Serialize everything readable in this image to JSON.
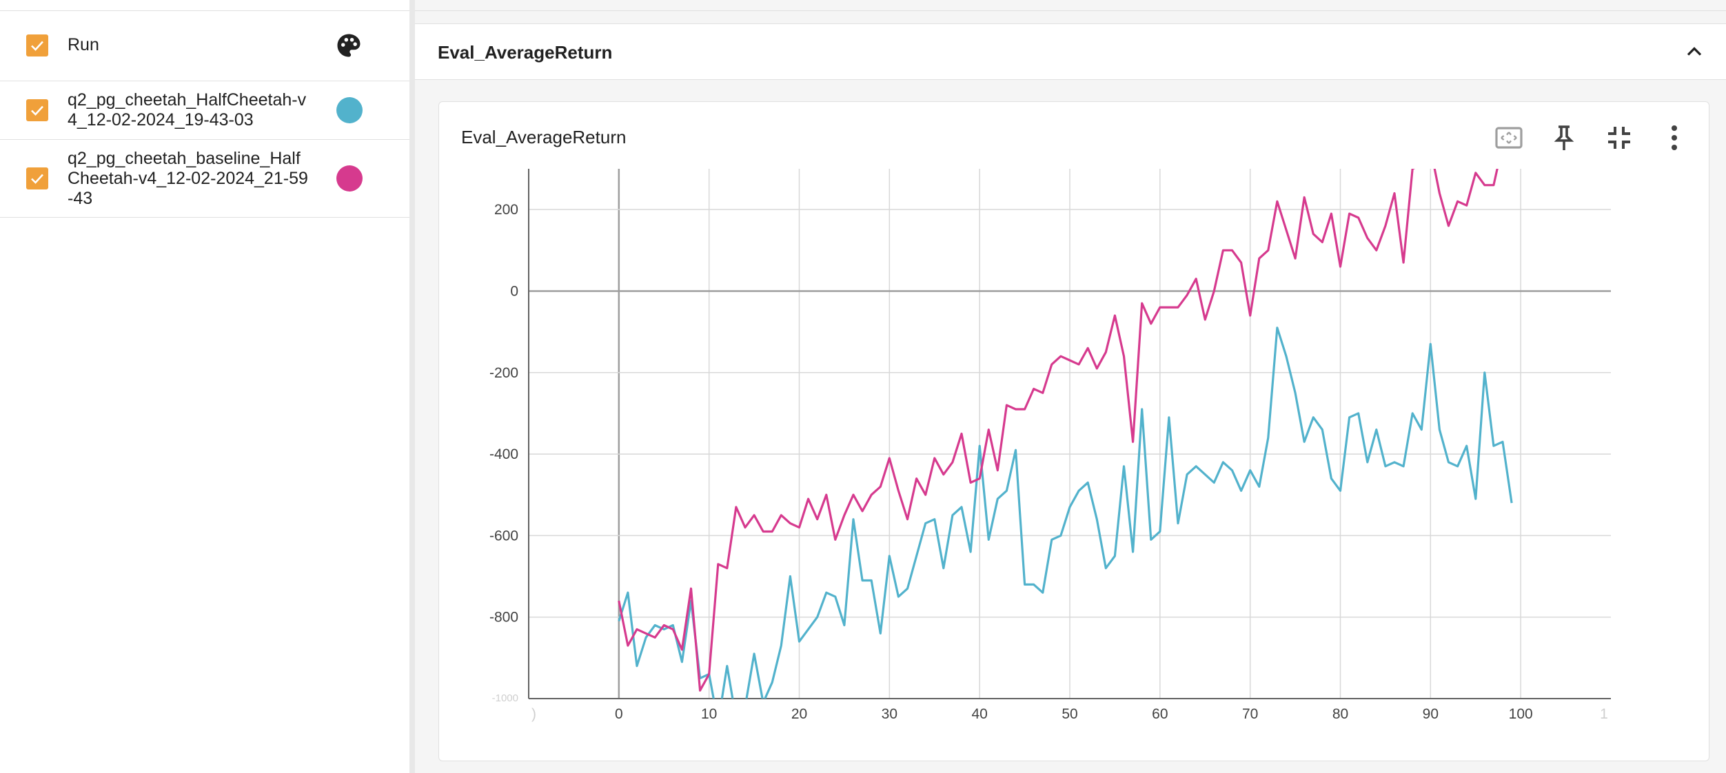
{
  "sidebar": {
    "header": {
      "label": "Run",
      "checked": true
    },
    "runs": [
      {
        "name": "q2_pg_cheetah_HalfCheetah-v4_12-02-2024_19-43-03",
        "color": "#52b2cc",
        "checked": true
      },
      {
        "name": "q2_pg_cheetah_baseline_HalfCheetah-v4_12-02-2024_21-59-43",
        "color": "#d63a8e",
        "checked": true
      }
    ]
  },
  "group": {
    "title": "Eval_AverageReturn"
  },
  "card": {
    "title": "Eval_AverageReturn"
  },
  "colors": {
    "checkbox": "#f0a03a",
    "grid": "#d8d8d8",
    "axis": "#9e9e9e",
    "series1": "#52b2cc",
    "series2": "#d63a8e"
  },
  "chart_data": {
    "type": "line",
    "title": "Eval_AverageReturn",
    "xlim": [
      -10,
      110
    ],
    "ylim": [
      -1000,
      300
    ],
    "x_ticks": [
      0,
      10,
      20,
      30,
      40,
      50,
      60,
      70,
      80,
      90,
      100
    ],
    "y_ticks": [
      200,
      0,
      -200,
      -400,
      -600,
      -800
    ],
    "edge_labels": {
      "x_left": ")",
      "x_right": "1",
      "y_bottom": "-1000"
    },
    "series": [
      {
        "name": "q2_pg_cheetah_HalfCheetah-v4_12-02-2024_19-43-03",
        "color": "#52b2cc",
        "x": [
          0,
          1,
          2,
          3,
          4,
          5,
          6,
          7,
          8,
          9,
          10,
          11,
          12,
          13,
          14,
          15,
          16,
          17,
          18,
          19,
          20,
          21,
          22,
          23,
          24,
          25,
          26,
          27,
          28,
          29,
          30,
          31,
          32,
          33,
          34,
          35,
          36,
          37,
          38,
          39,
          40,
          41,
          42,
          43,
          44,
          45,
          46,
          47,
          48,
          49,
          50,
          51,
          52,
          53,
          54,
          55,
          56,
          57,
          58,
          59,
          60,
          61,
          62,
          63,
          64,
          65,
          66,
          67,
          68,
          69,
          70,
          71,
          72,
          73,
          74,
          75,
          76,
          77,
          78,
          79,
          80,
          81,
          82,
          83,
          84,
          85,
          86,
          87,
          88,
          89,
          90,
          91,
          92,
          93,
          94,
          95,
          96,
          97,
          98,
          99
        ],
        "values": [
          -810,
          -740,
          -920,
          -850,
          -820,
          -830,
          -820,
          -910,
          -760,
          -950,
          -940,
          -1060,
          -920,
          -1050,
          -1020,
          -890,
          -1010,
          -960,
          -870,
          -700,
          -860,
          -830,
          -800,
          -740,
          -750,
          -820,
          -560,
          -710,
          -710,
          -840,
          -650,
          -750,
          -730,
          -650,
          -570,
          -560,
          -680,
          -550,
          -530,
          -640,
          -380,
          -610,
          -510,
          -490,
          -390,
          -720,
          -720,
          -740,
          -610,
          -600,
          -530,
          -490,
          -470,
          -560,
          -680,
          -650,
          -430,
          -640,
          -290,
          -610,
          -590,
          -310,
          -570,
          -450,
          -430,
          -450,
          -470,
          -420,
          -440,
          -490,
          -440,
          -480,
          -360,
          -90,
          -160,
          -250,
          -370,
          -310,
          -340,
          -460,
          -490,
          -310,
          -300,
          -420,
          -340,
          -430,
          -420,
          -430,
          -300,
          -340,
          -130,
          -340,
          -420,
          -430,
          -380,
          -510,
          -200,
          -380,
          -370,
          -520
        ]
      },
      {
        "name": "q2_pg_cheetah_baseline_HalfCheetah-v4_12-02-2024_21-59-43",
        "color": "#d63a8e",
        "x": [
          0,
          1,
          2,
          3,
          4,
          5,
          6,
          7,
          8,
          9,
          10,
          11,
          12,
          13,
          14,
          15,
          16,
          17,
          18,
          19,
          20,
          21,
          22,
          23,
          24,
          25,
          26,
          27,
          28,
          29,
          30,
          31,
          32,
          33,
          34,
          35,
          36,
          37,
          38,
          39,
          40,
          41,
          42,
          43,
          44,
          45,
          46,
          47,
          48,
          49,
          50,
          51,
          52,
          53,
          54,
          55,
          56,
          57,
          58,
          59,
          60,
          61,
          62,
          63,
          64,
          65,
          66,
          67,
          68,
          69,
          70,
          71,
          72,
          73,
          74,
          75,
          76,
          77,
          78,
          79,
          80,
          81,
          82,
          83,
          84,
          85,
          86,
          87,
          88,
          89,
          90,
          91,
          92,
          93,
          94,
          95,
          96,
          97,
          98,
          99
        ],
        "values": [
          -760,
          -870,
          -830,
          -840,
          -850,
          -820,
          -830,
          -880,
          -730,
          -980,
          -940,
          -670,
          -680,
          -530,
          -580,
          -550,
          -590,
          -590,
          -550,
          -570,
          -580,
          -510,
          -560,
          -500,
          -610,
          -550,
          -500,
          -540,
          -500,
          -480,
          -410,
          -490,
          -560,
          -460,
          -500,
          -410,
          -450,
          -420,
          -350,
          -470,
          -460,
          -340,
          -440,
          -280,
          -290,
          -290,
          -240,
          -250,
          -180,
          -160,
          -170,
          -180,
          -140,
          -190,
          -150,
          -60,
          -160,
          -370,
          -30,
          -80,
          -40,
          -40,
          -40,
          -10,
          30,
          -70,
          0,
          100,
          100,
          70,
          -60,
          80,
          100,
          220,
          150,
          80,
          230,
          140,
          120,
          190,
          60,
          190,
          180,
          130,
          100,
          160,
          240,
          70,
          300,
          310,
          350,
          240,
          160,
          220,
          210,
          290,
          260,
          260,
          360,
          370
        ]
      }
    ]
  }
}
